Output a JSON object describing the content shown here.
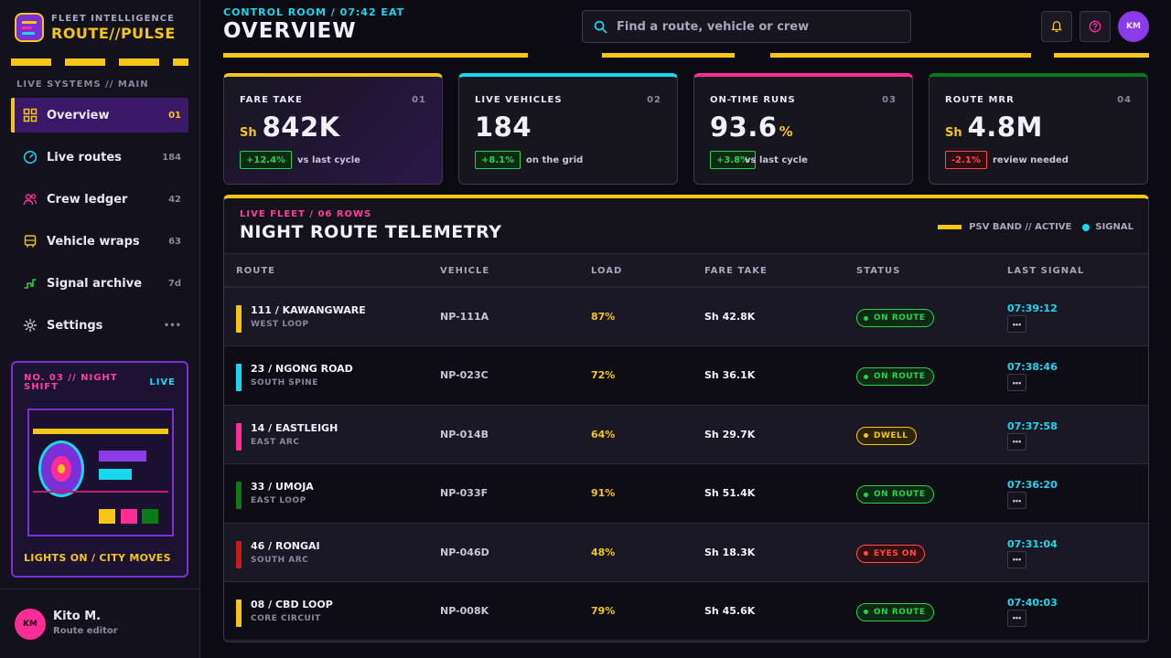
{
  "brand": {
    "subtitle": "FLEET INTELLIGENCE",
    "name": "ROUTE//PULSE"
  },
  "sidebar": {
    "section_label": "LIVE SYSTEMS // MAIN",
    "items": [
      {
        "label": "Overview",
        "count": "01",
        "icon": "grid-icon",
        "active": true
      },
      {
        "label": "Live routes",
        "count": "184",
        "icon": "gauge-icon"
      },
      {
        "label": "Crew ledger",
        "count": "42",
        "icon": "users-icon"
      },
      {
        "label": "Vehicle wraps",
        "count": "63",
        "icon": "bus-icon"
      },
      {
        "label": "Signal archive",
        "count": "7d",
        "icon": "signal-icon"
      },
      {
        "label": "Settings",
        "count": "•••",
        "icon": "gear-icon"
      }
    ],
    "shift_card": {
      "title": "NO. 03 // NIGHT SHIFT",
      "badge": "LIVE",
      "caption": "LIGHTS ON / CITY MOVES"
    },
    "user": {
      "initials": "KM",
      "name": "Kito M.",
      "role": "Route editor"
    }
  },
  "header": {
    "breadcrumb": "CONTROL ROOM / 07:42 EAT",
    "title": "OVERVIEW",
    "search_placeholder": "Find a route, vehicle or crew",
    "avatar_initials": "KM"
  },
  "kpis": [
    {
      "label": "FARE TAKE",
      "index": "01",
      "prefix": "Sh",
      "value": "842K",
      "suffix": "",
      "delta": "+12.4%",
      "delta_tone": "up",
      "note": "vs last cycle",
      "accent": "#f5c518"
    },
    {
      "label": "LIVE VEHICLES",
      "index": "02",
      "prefix": "",
      "value": "184",
      "suffix": "",
      "delta": "+8.1%",
      "delta_tone": "up",
      "note": "on the grid",
      "accent": "#18d8f0"
    },
    {
      "label": "ON-TIME RUNS",
      "index": "03",
      "prefix": "",
      "value": "93.6",
      "suffix": "%",
      "delta": "+3.8%",
      "delta_tone": "up",
      "note": "vs last cycle",
      "accent": "#ff2e97"
    },
    {
      "label": "ROUTE MRR",
      "index": "04",
      "prefix": "Sh",
      "value": "4.8M",
      "suffix": "",
      "delta": "-2.1%",
      "delta_tone": "down",
      "note": "review needed",
      "accent": "#0a7a14"
    }
  ],
  "table": {
    "kicker": "LIVE FLEET / 06 ROWS",
    "title": "NIGHT ROUTE TELEMETRY",
    "legend_band": "PSV BAND // ACTIVE",
    "legend_signal": "SIGNAL",
    "columns": [
      "ROUTE",
      "VEHICLE",
      "LOAD",
      "FARE TAKE",
      "STATUS",
      "LAST SIGNAL"
    ],
    "rows": [
      {
        "route": "111 / KAWANGWARE",
        "sub": "WEST LOOP",
        "band": "#f5c518",
        "vehicle": "NP-111A",
        "load": "87%",
        "fare": "Sh 42.8K",
        "status": "ON ROUTE",
        "tone": "green",
        "signal": "07:39:12"
      },
      {
        "route": "23 / NGONG ROAD",
        "sub": "SOUTH SPINE",
        "band": "#18d8f0",
        "vehicle": "NP-023C",
        "load": "72%",
        "fare": "Sh 36.1K",
        "status": "ON ROUTE",
        "tone": "green",
        "signal": "07:38:46"
      },
      {
        "route": "14 / EASTLEIGH",
        "sub": "EAST ARC",
        "band": "#ff2e97",
        "vehicle": "NP-014B",
        "load": "64%",
        "fare": "Sh 29.7K",
        "status": "DWELL",
        "tone": "yellow",
        "signal": "07:37:58"
      },
      {
        "route": "33 / UMOJA",
        "sub": "EAST LOOP",
        "band": "#0a7a14",
        "vehicle": "NP-033F",
        "load": "91%",
        "fare": "Sh 51.4K",
        "status": "ON ROUTE",
        "tone": "green",
        "signal": "07:36:20"
      },
      {
        "route": "46 / RONGAI",
        "sub": "SOUTH ARC",
        "band": "#c81a1a",
        "vehicle": "NP-046D",
        "load": "48%",
        "fare": "Sh 18.3K",
        "status": "EYES ON",
        "tone": "red",
        "signal": "07:31:04"
      },
      {
        "route": "08 / CBD LOOP",
        "sub": "CORE CIRCUIT",
        "band": "#f5c518",
        "vehicle": "NP-008K",
        "load": "79%",
        "fare": "Sh 45.6K",
        "status": "ON ROUTE",
        "tone": "green",
        "signal": "07:40:03"
      }
    ],
    "row_action_label": "•••"
  },
  "colors": {
    "accent": "#f5c518",
    "cyan": "#18d8f0",
    "pink": "#ff2e97",
    "purple": "#7b2fd6",
    "green": "#2bd14a",
    "red": "#ff4a4a"
  }
}
